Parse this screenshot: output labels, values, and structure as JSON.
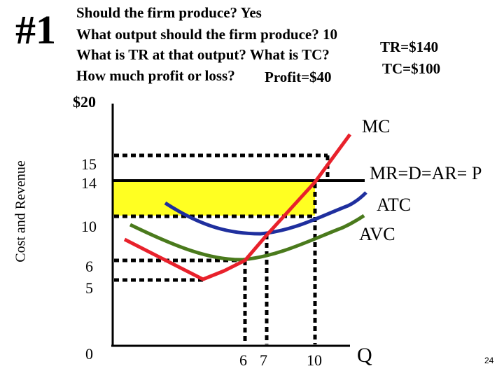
{
  "slide": {
    "tag": "#1",
    "page_number": "24"
  },
  "questions": [
    "Should the firm produce? Yes",
    "What output should the firm produce? 10",
    "What is TR at that output? What is TC?",
    "How much profit or loss? "
  ],
  "answers": {
    "profit": "Profit=$40",
    "tr": "TR=$140",
    "tc": "TC=$100"
  },
  "axes": {
    "y_title": "Cost and Revenue",
    "y_ticks": [
      "$20",
      "15",
      "14",
      "10",
      "6",
      "5",
      "0"
    ],
    "x_ticks": [
      "6",
      "7",
      "10"
    ],
    "x_title": "Q"
  },
  "curve_labels": {
    "mc": "MC",
    "mr": "MR=D=AR= P",
    "atc": "ATC",
    "avc": "AVC"
  },
  "colors": {
    "mc": "#e8212b",
    "atc": "#1f2f9e",
    "avc": "#4a7a1c",
    "price_line": "#000000",
    "profit_area": "#ffff22"
  },
  "chart_data": {
    "type": "line",
    "title": "",
    "xlabel": "Q",
    "ylabel": "Cost and Revenue",
    "price": 14,
    "profit_maximizing_output": 10,
    "atc_at_output": 10,
    "total_revenue": 140,
    "total_cost": 100,
    "profit": 40,
    "markers": [
      {
        "q": 6,
        "value": 6
      },
      {
        "q": 7,
        "value": 9
      },
      {
        "q": 10,
        "value": 14
      }
    ]
  }
}
